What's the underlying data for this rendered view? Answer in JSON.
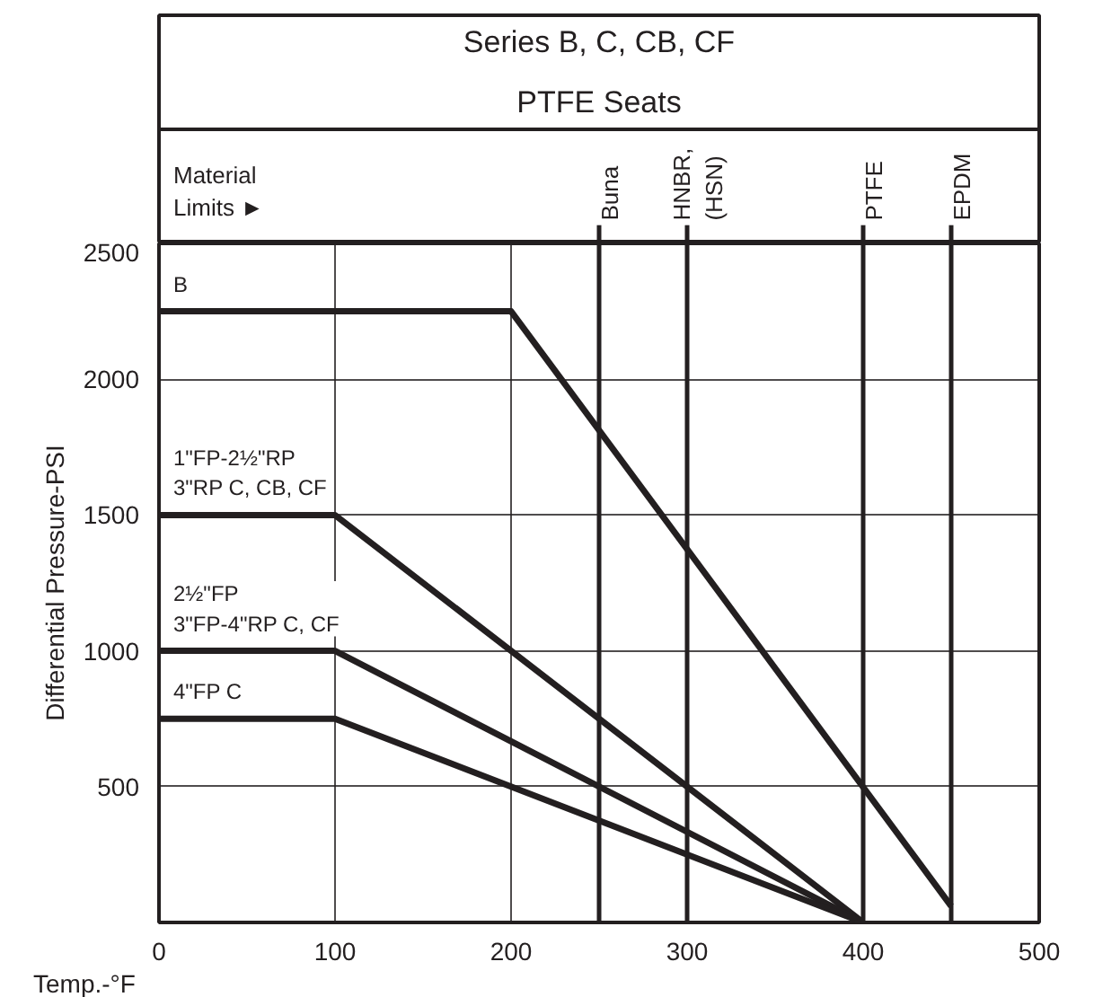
{
  "chart_data": {
    "type": "line",
    "title": "Series B, C, CB, CF",
    "subtitle": "PTFE Seats",
    "xlabel": "Temp.-°F",
    "ylabel": "Differential Pressure-PSI",
    "xlim": [
      0,
      500
    ],
    "ylim": [
      0,
      2500
    ],
    "xticks": [
      0,
      100,
      200,
      300,
      400,
      500
    ],
    "yticks": [
      500,
      1000,
      1500,
      2000,
      2500
    ],
    "grid": true,
    "marker": "none",
    "line_style": "solid",
    "annotations": [
      "Material\nLimits ►"
    ],
    "ref_lines": [
      {
        "axis": "x",
        "value": 250,
        "label": "Buna",
        "color": "#231f20"
      },
      {
        "axis": "x",
        "value": 300,
        "label": "HNBR,\n(HSN)",
        "color": "#231f20"
      },
      {
        "axis": "x",
        "value": 400,
        "label": "PTFE",
        "color": "#231f20"
      },
      {
        "axis": "x",
        "value": 450,
        "label": "EPDM",
        "color": "#231f20"
      }
    ],
    "series": [
      {
        "name": "B",
        "color": "#231f20",
        "x": [
          0,
          200,
          450
        ],
        "values": [
          2250,
          2250,
          60
        ]
      },
      {
        "name": "1\"FP-2½\"RP\n3\"RP C, CB, CF",
        "color": "#231f20",
        "x": [
          0,
          100,
          400
        ],
        "values": [
          1500,
          1500,
          0
        ]
      },
      {
        "name": "2½\"FP\n3\"FP-4\"RP C, CF",
        "color": "#231f20",
        "x": [
          0,
          100,
          400
        ],
        "values": [
          1000,
          1000,
          0
        ]
      },
      {
        "name": "4\"FP C",
        "color": "#231f20",
        "x": [
          0,
          100,
          400
        ],
        "values": [
          750,
          750,
          0
        ]
      }
    ]
  }
}
